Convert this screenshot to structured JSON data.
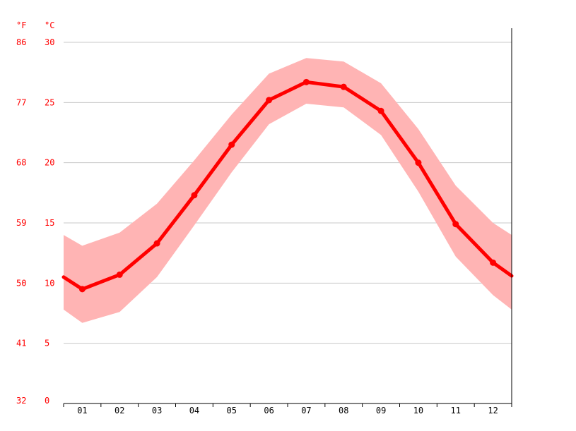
{
  "chart_data": {
    "type": "line",
    "title": "",
    "units": {
      "fahrenheit": "°F",
      "celsius": "°C"
    },
    "y_celsius_ticks": [
      "30",
      "25",
      "20",
      "15",
      "10",
      "5",
      "0"
    ],
    "y_fahrenheit_ticks": [
      "86",
      "77",
      "68",
      "59",
      "50",
      "41",
      "32"
    ],
    "ylim": [
      0,
      30
    ],
    "categories": [
      "01",
      "02",
      "03",
      "04",
      "05",
      "06",
      "07",
      "08",
      "09",
      "10",
      "11",
      "12"
    ],
    "series": [
      {
        "values": [
          9.5,
          10.7,
          13.3,
          17.3,
          21.5,
          25.2,
          26.7,
          26.3,
          24.3,
          20.0,
          14.9,
          11.7
        ]
      }
    ],
    "band": {
      "upper": [
        13.1,
        14.2,
        16.6,
        20.2,
        24.0,
        27.4,
        28.7,
        28.4,
        26.6,
        22.8,
        18.1,
        15.0
      ],
      "lower": [
        6.7,
        7.6,
        10.5,
        14.8,
        19.2,
        23.2,
        24.9,
        24.6,
        22.3,
        17.6,
        12.2,
        9.0
      ]
    },
    "edge_values": {
      "start": {
        "value": 10.5,
        "upper": 14.0,
        "lower": 7.8
      },
      "end": {
        "value": 10.6,
        "upper": 14.0,
        "lower": 7.8
      }
    },
    "grid": true,
    "colors": {
      "line": "#ff0000",
      "band": "#ffb4b4",
      "grid": "#c8c8c8",
      "axis": "#000000",
      "tick_label": "#ff0000",
      "x_tick_label": "#000000"
    }
  }
}
